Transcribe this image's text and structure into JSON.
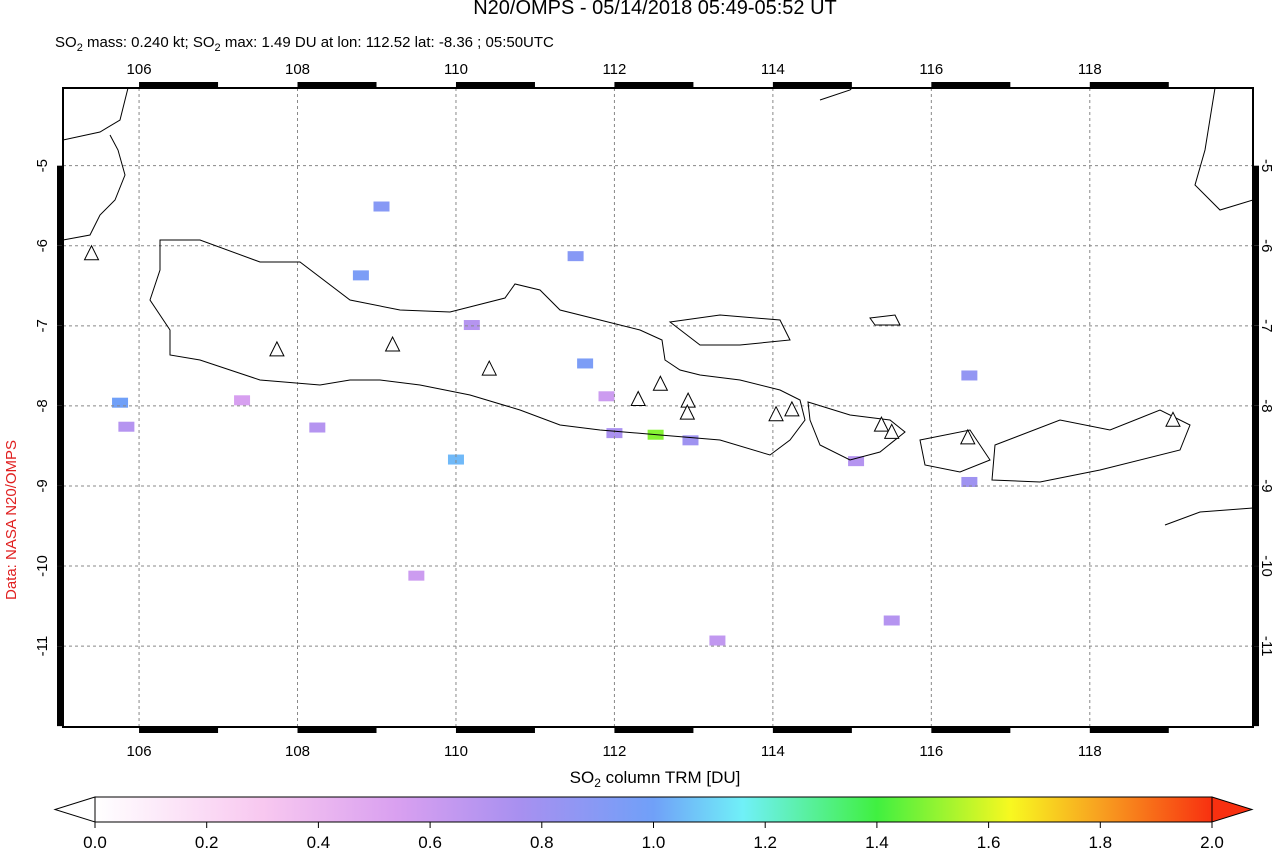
{
  "header": {
    "title": "N20/OMPS - 05/14/2018 05:49-05:52 UT",
    "subtitle": [
      "SO",
      "2",
      " mass: 0.240 kt; SO",
      "2",
      " max: 1.49 DU at lon: 112.52 lat: -8.36 ; 05:50UTC"
    ]
  },
  "credit": "Data: NASA N20/OMPS",
  "map": {
    "xlim": [
      105.04,
      120.06
    ],
    "ylim": [
      -12.01,
      -4.03
    ],
    "xticks": [
      106,
      108,
      110,
      112,
      114,
      116,
      118
    ],
    "yticks": [
      -5,
      -6,
      -7,
      -8,
      -9,
      -10,
      -11
    ],
    "volcanoes": [
      [
        105.4,
        -6.1
      ],
      [
        107.74,
        -7.3
      ],
      [
        109.2,
        -7.24
      ],
      [
        110.42,
        -7.54
      ],
      [
        112.3,
        -7.92
      ],
      [
        112.58,
        -7.73
      ],
      [
        112.93,
        -7.94
      ],
      [
        112.92,
        -8.09
      ],
      [
        114.04,
        -8.11
      ],
      [
        114.24,
        -8.05
      ],
      [
        115.37,
        -8.24
      ],
      [
        115.5,
        -8.33
      ],
      [
        116.46,
        -8.4
      ],
      [
        119.05,
        -8.18
      ]
    ],
    "pixels": [
      {
        "lon": 105.76,
        "lat": -7.96,
        "value": 1.0
      },
      {
        "lon": 110.0,
        "lat": -8.67,
        "value": 1.05
      },
      {
        "lon": 112.52,
        "lat": -8.36,
        "value": 1.49
      },
      {
        "lon": 111.63,
        "lat": -7.47,
        "value": 0.95
      },
      {
        "lon": 111.51,
        "lat": -6.13,
        "value": 0.9
      },
      {
        "lon": 108.8,
        "lat": -6.37,
        "value": 0.95
      },
      {
        "lon": 109.06,
        "lat": -5.51,
        "value": 0.9
      },
      {
        "lon": 116.48,
        "lat": -7.62,
        "value": 0.85
      },
      {
        "lon": 116.48,
        "lat": -8.95,
        "value": 0.8
      },
      {
        "lon": 112.0,
        "lat": -8.34,
        "value": 0.75
      },
      {
        "lon": 112.96,
        "lat": -8.43,
        "value": 0.8
      },
      {
        "lon": 108.25,
        "lat": -8.27,
        "value": 0.7
      },
      {
        "lon": 105.84,
        "lat": -8.26,
        "value": 0.7
      },
      {
        "lon": 110.2,
        "lat": -6.99,
        "value": 0.7
      },
      {
        "lon": 115.5,
        "lat": -10.68,
        "value": 0.7
      },
      {
        "lon": 115.05,
        "lat": -8.69,
        "value": 0.7
      },
      {
        "lon": 107.3,
        "lat": -7.93,
        "value": 0.55
      },
      {
        "lon": 111.9,
        "lat": -7.88,
        "value": 0.6
      },
      {
        "lon": 113.3,
        "lat": -10.93,
        "value": 0.65
      },
      {
        "lon": 109.5,
        "lat": -10.12,
        "value": 0.6
      }
    ]
  },
  "colorbar": {
    "label": [
      "SO",
      "2",
      " column TRM [DU]"
    ],
    "lim": [
      0,
      2
    ],
    "ticks": [
      {
        "value": 0,
        "label": "0.0"
      },
      {
        "value": 0.2,
        "label": "0.2"
      },
      {
        "value": 0.4,
        "label": "0.4"
      },
      {
        "value": 0.6,
        "label": "0.6"
      },
      {
        "value": 0.8,
        "label": "0.8"
      },
      {
        "value": 1,
        "label": "1.0"
      },
      {
        "value": 1.2,
        "label": "1.2"
      },
      {
        "value": 1.4,
        "label": "1.4"
      },
      {
        "value": 1.6,
        "label": "1.6"
      },
      {
        "value": 1.8,
        "label": "1.8"
      },
      {
        "value": 2,
        "label": "2.0"
      }
    ]
  }
}
